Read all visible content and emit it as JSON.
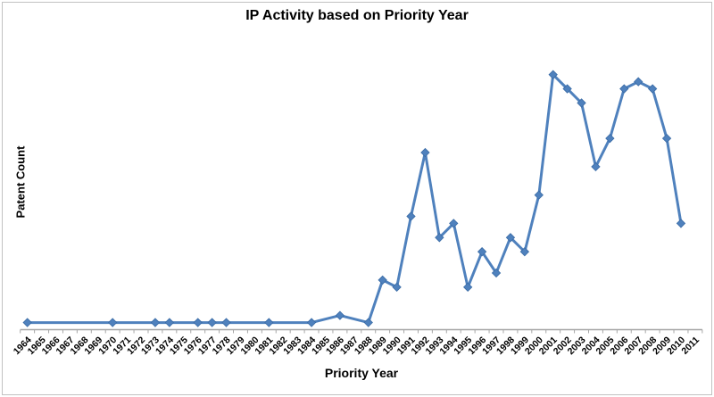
{
  "title": "IP Activity based on Priority Year",
  "chart_data": {
    "type": "line",
    "title": "IP Activity based on Priority Year",
    "xlabel": "Priority Year",
    "ylabel": "Patent Count",
    "x_axis": {
      "categories": [
        "1964",
        "1965",
        "1966",
        "1967",
        "1968",
        "1969",
        "1970",
        "1971",
        "1972",
        "1973",
        "1974",
        "1975",
        "1976",
        "1977",
        "1978",
        "1979",
        "1980",
        "1981",
        "1982",
        "1983",
        "1984",
        "1985",
        "1986",
        "1987",
        "1988",
        "1989",
        "1990",
        "1991",
        "1992",
        "1993",
        "1994",
        "1995",
        "1996",
        "1997",
        "1998",
        "1999",
        "2000",
        "2001",
        "2002",
        "2003",
        "2004",
        "2005",
        "2006",
        "2007",
        "2008",
        "2009",
        "2010",
        "2011"
      ],
      "tick_label_rotation_deg": -45
    },
    "y_axis": {
      "title": "Patent Count",
      "tick_labels_visible": false,
      "gridlines": false,
      "ylim": [
        0,
        38
      ]
    },
    "legend": "none",
    "series": [
      {
        "name": "Patent Count",
        "marker": "diamond",
        "points": [
          {
            "year": 1964,
            "value": 1
          },
          {
            "year": 1970,
            "value": 1
          },
          {
            "year": 1973,
            "value": 1
          },
          {
            "year": 1974,
            "value": 1
          },
          {
            "year": 1976,
            "value": 1
          },
          {
            "year": 1977,
            "value": 1
          },
          {
            "year": 1978,
            "value": 1
          },
          {
            "year": 1981,
            "value": 1
          },
          {
            "year": 1984,
            "value": 1
          },
          {
            "year": 1986,
            "value": 2
          },
          {
            "year": 1988,
            "value": 1
          },
          {
            "year": 1989,
            "value": 7
          },
          {
            "year": 1990,
            "value": 6
          },
          {
            "year": 1991,
            "value": 16
          },
          {
            "year": 1992,
            "value": 25
          },
          {
            "year": 1993,
            "value": 13
          },
          {
            "year": 1994,
            "value": 15
          },
          {
            "year": 1995,
            "value": 6
          },
          {
            "year": 1996,
            "value": 11
          },
          {
            "year": 1997,
            "value": 8
          },
          {
            "year": 1998,
            "value": 13
          },
          {
            "year": 1999,
            "value": 11
          },
          {
            "year": 2000,
            "value": 19
          },
          {
            "year": 2001,
            "value": 36
          },
          {
            "year": 2002,
            "value": 34
          },
          {
            "year": 2003,
            "value": 32
          },
          {
            "year": 2004,
            "value": 23
          },
          {
            "year": 2005,
            "value": 27
          },
          {
            "year": 2006,
            "value": 34
          },
          {
            "year": 2007,
            "value": 35
          },
          {
            "year": 2008,
            "value": 34
          },
          {
            "year": 2009,
            "value": 27
          },
          {
            "year": 2010,
            "value": 15
          }
        ]
      }
    ],
    "colors": {
      "line": "#4f81bd",
      "marker": "#4f81bd",
      "marker_edge": "#3a6ba5",
      "axis": "#a6a6a6",
      "tick_label_text": "#000000",
      "title_text": "#000000",
      "frame_border": "#c2c2c2",
      "background": "#ffffff"
    }
  }
}
